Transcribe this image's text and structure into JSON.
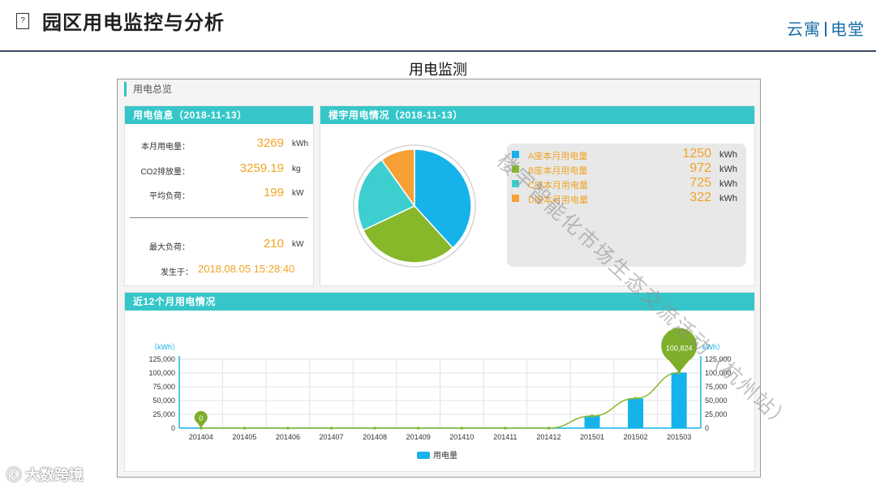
{
  "slide": {
    "icon_glyph": "?",
    "title": "园区用电监控与分析",
    "brand_left": "云寓",
    "brand_right": "电堂",
    "subtitle": "用电监测"
  },
  "dashboard": {
    "header": "用电总览",
    "info_panel": {
      "title": "用电信息（2018-11-13）",
      "rows": [
        {
          "label": "本月用电量：",
          "value": "3269",
          "unit": "kWh"
        },
        {
          "label": "CO2排放量：",
          "value": "3259.19",
          "unit": "kg"
        },
        {
          "label": "平均负荷：",
          "value": "199",
          "unit": "kW"
        },
        {
          "label": "最大负荷：",
          "value": "210",
          "unit": "kW"
        }
      ],
      "occurred_label": "发生于：",
      "occurred_value": "2018.08.05 15:28:40"
    },
    "building_panel": {
      "title": "楼宇用电情况（2018-11-13）",
      "legend": [
        {
          "name": "A座本月用电量",
          "value": "1250",
          "unit": "kWh",
          "color": "#16b3eb"
        },
        {
          "name": "B座本月用电量",
          "value": "972",
          "unit": "kWh",
          "color": "#86b82a"
        },
        {
          "name": "C座本月用电量",
          "value": "725",
          "unit": "kWh",
          "color": "#3dcfd0"
        },
        {
          "name": "D座本月用电量",
          "value": "322",
          "unit": "kWh",
          "color": "#f7a035"
        }
      ]
    },
    "monthly_panel": {
      "title": "近12个月用电情况"
    }
  },
  "chart_data": [
    {
      "type": "pie",
      "labels": [
        "A座本月用电量",
        "B座本月用电量",
        "C座本月用电量",
        "D座本月用电量"
      ],
      "values": [
        1250,
        972,
        725,
        322
      ],
      "colors": [
        "#16b3eb",
        "#86b82a",
        "#3dcfd0",
        "#f7a035"
      ]
    },
    {
      "type": "bar",
      "categories": [
        "201404",
        "201405",
        "201406",
        "201407",
        "201408",
        "201409",
        "201410",
        "201411",
        "201412",
        "201501",
        "201502",
        "201503"
      ],
      "series": [
        {
          "name": "用电量",
          "values": [
            0,
            0,
            0,
            0,
            0,
            0,
            0,
            0,
            0,
            22000,
            54000,
            100824
          ],
          "color": "#16b3eb"
        }
      ],
      "line_overlay": {
        "values": [
          0,
          0,
          0,
          0,
          0,
          0,
          0,
          0,
          0,
          22000,
          54000,
          100824
        ],
        "color": "#86b82a"
      },
      "y_ticks": [
        "125,000",
        "100,000",
        "75,000",
        "50,000",
        "25,000",
        "0"
      ],
      "y_unit_left": "（kWh）",
      "y_unit_right": "kWh）",
      "ylim": [
        0,
        125000
      ],
      "markers": [
        {
          "category": "201404",
          "label": "0"
        },
        {
          "category": "201503",
          "label": "100,824"
        }
      ],
      "legend_position": "bottom-center",
      "grid": true
    }
  ],
  "watermark": {
    "logo_text": "大数跨境",
    "diagonal_text": "楼宇智能化市场生态交流活动（杭州站）"
  }
}
